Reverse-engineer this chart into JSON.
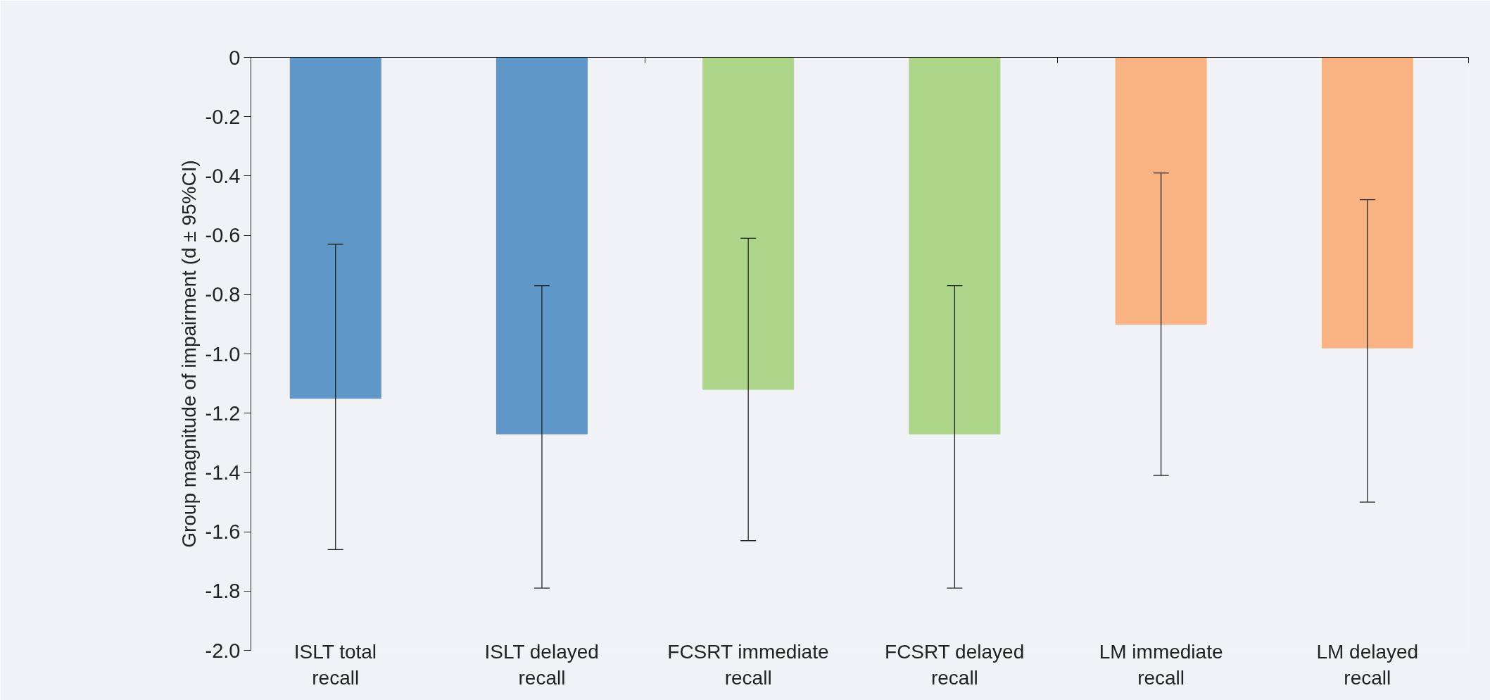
{
  "chart_data": {
    "type": "bar",
    "ylabel": "Group magnitude of impairment (d ± 95%CI)",
    "categories": [
      "ISLT total recall",
      "ISLT delayed recall",
      "FCSRT immediate recall",
      "FCSRT delayed recall",
      "LM immediate recall",
      "LM delayed recall"
    ],
    "values": [
      -1.15,
      -1.27,
      -1.12,
      -1.27,
      -0.9,
      -0.98
    ],
    "colors": [
      "#6097c9",
      "#6097c9",
      "#acd58a",
      "#acd58a",
      "#f9b382",
      "#f9b382"
    ],
    "errors": [
      [
        -1.66,
        -0.63
      ],
      [
        -1.79,
        -0.77
      ],
      [
        -1.63,
        -0.61
      ],
      [
        -1.79,
        -0.77
      ],
      [
        -1.41,
        -0.39
      ],
      [
        -1.5,
        -0.48
      ]
    ],
    "ylim": [
      -2.0,
      0
    ],
    "yticks": [
      0,
      {
        "value": -0.2,
        "label": "-0.2"
      },
      {
        "value": -0.4,
        "label": "-0.4"
      },
      {
        "value": -0.6,
        "label": "-0.6"
      },
      {
        "value": -0.8,
        "label": "-0.8"
      },
      {
        "value": -1.0,
        "label": "-1.0"
      },
      {
        "value": -1.2,
        "label": "-1.2"
      },
      {
        "value": -1.4,
        "label": "-1.4"
      },
      {
        "value": -1.6,
        "label": "-1.6"
      },
      {
        "value": -1.8,
        "label": "-1.8"
      },
      {
        "value": -2.0,
        "label": "-2.0"
      }
    ],
    "grid": false
  }
}
